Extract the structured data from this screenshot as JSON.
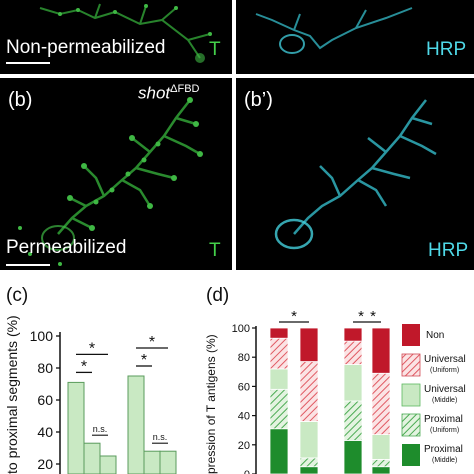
{
  "panels": {
    "a_top_left": {
      "caption": "Non-permeabilized",
      "channel": "T"
    },
    "a_top_right": {
      "channel": "HRP"
    },
    "b": {
      "label": "(b)",
      "genotype": "shot",
      "genotype_sup": "ΔFBD",
      "caption": "Permeabilized",
      "channel": "T"
    },
    "b_prime": {
      "label": "(b’)",
      "channel": "HRP"
    }
  },
  "chart_c": {
    "label": "(c)",
    "ylabel": "to proximal segments (%)",
    "yticks": [
      "20",
      "40",
      "60",
      "80",
      "100"
    ],
    "ns_label": "n.s.",
    "star": "*"
  },
  "chart_d": {
    "label": "(d)",
    "ylabel": "pression of T antigens (%)",
    "yticks": [
      "0",
      "20",
      "40",
      "60",
      "80",
      "100"
    ],
    "star": "*",
    "legend": [
      {
        "label": "Non",
        "sub": "",
        "color": "#c0182a",
        "pattern": "solid"
      },
      {
        "label": "Universal",
        "sub": "(Uniform)",
        "color": "#e57f85",
        "pattern": "hatch"
      },
      {
        "label": "Universal",
        "sub": "(Middle)",
        "color": "#c9e9c3",
        "pattern": "solid"
      },
      {
        "label": "Proximal",
        "sub": "(Uniform)",
        "color": "#5cb860",
        "pattern": "hatch"
      },
      {
        "label": "Proximal",
        "sub": "(Middle)",
        "color": "#1e8c2c",
        "pattern": "solid"
      }
    ]
  },
  "chart_data": [
    {
      "type": "bar",
      "title": "",
      "ylabel": "to proximal segments (%)",
      "ylim": [
        0,
        100
      ],
      "groups": [
        {
          "values": [
            71,
            33,
            25
          ]
        },
        {
          "values": [
            75,
            28,
            28
          ]
        }
      ],
      "annotations": [
        "*",
        "*",
        "n.s.",
        "*",
        "*",
        "n.s."
      ]
    },
    {
      "type": "bar",
      "stacked": true,
      "title": "",
      "ylabel": "pression of T antigens (%)",
      "ylim": [
        0,
        100
      ],
      "stack_order": [
        "Proximal (Middle)",
        "Proximal (Uniform)",
        "Universal (Middle)",
        "Universal (Uniform)",
        "Non"
      ],
      "bars": [
        [
          31,
          27,
          14,
          21,
          7
        ],
        [
          5,
          6,
          25,
          41,
          23
        ],
        [
          23,
          27,
          25,
          16,
          9
        ],
        [
          5,
          5,
          17,
          42,
          31
        ]
      ],
      "annotations": [
        "*",
        "*",
        "*"
      ]
    }
  ]
}
